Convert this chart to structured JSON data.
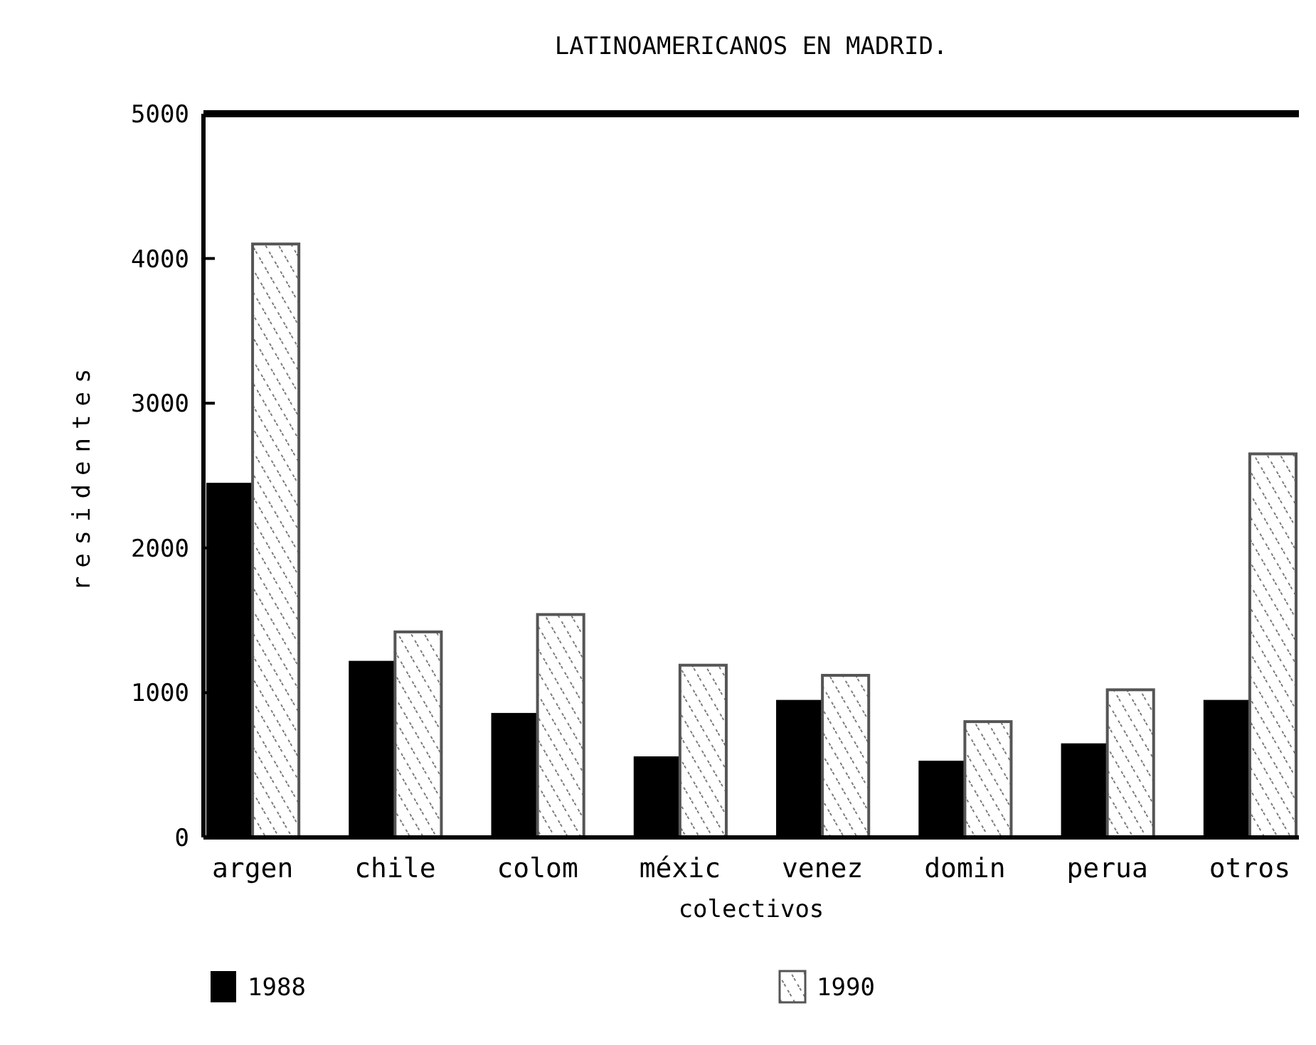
{
  "chart_data": {
    "type": "bar",
    "title": "LATINOAMERICANOS EN MADRID.",
    "xlabel": "colectivos",
    "ylabel": "residentes",
    "categories": [
      "argen",
      "chile",
      "colom",
      "méxic",
      "venez",
      "domin",
      "perua",
      "otros"
    ],
    "series": [
      {
        "name": "1988",
        "color": "#000000",
        "values": [
          2450,
          1220,
          860,
          560,
          950,
          530,
          650,
          950
        ]
      },
      {
        "name": "1990",
        "color": "#555555",
        "values": [
          4100,
          1420,
          1540,
          1190,
          1120,
          800,
          1020,
          2650
        ]
      }
    ],
    "ylim": [
      0,
      5000
    ],
    "yticks": [
      0,
      1000,
      2000,
      3000,
      4000,
      5000
    ],
    "grid": false,
    "legend": "bottom"
  }
}
